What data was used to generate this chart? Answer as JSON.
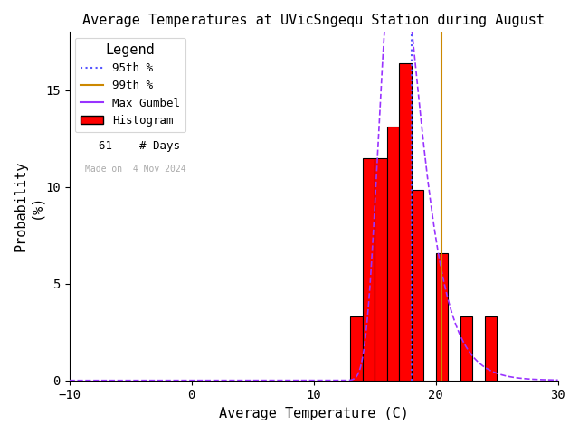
{
  "title": "Average Temperatures at UVicSngequ Station during August",
  "xlabel": "Average Temperature (C)",
  "ylabel_line1": "Probability",
  "ylabel_line2": "(%)",
  "xlim": [
    -10,
    30
  ],
  "ylim": [
    0,
    18
  ],
  "yticks": [
    0,
    5,
    10,
    15
  ],
  "xticks": [
    -10,
    0,
    10,
    20,
    30
  ],
  "n_days": 61,
  "date_made": "Made on  4 Nov 2024",
  "bin_left": [
    13,
    14,
    15,
    16,
    17,
    18,
    19,
    20,
    21,
    22,
    23,
    24
  ],
  "bin_heights": [
    3.28,
    11.48,
    11.48,
    13.11,
    16.39,
    9.84,
    0.0,
    6.56,
    0.0,
    3.28,
    0.0,
    3.28
  ],
  "hist_color": "#ff0000",
  "hist_edgecolor": "#000000",
  "gumbel_color": "#9933ff",
  "gumbel_mu": 16.8,
  "gumbel_beta": 1.6,
  "percentile_95": 18.0,
  "percentile_99": 20.5,
  "p95_color": "#5555ff",
  "p99_color": "#cc8800",
  "background_color": "#ffffff",
  "title_fontsize": 11,
  "axis_fontsize": 11,
  "tick_fontsize": 10,
  "legend_fontsize": 9
}
